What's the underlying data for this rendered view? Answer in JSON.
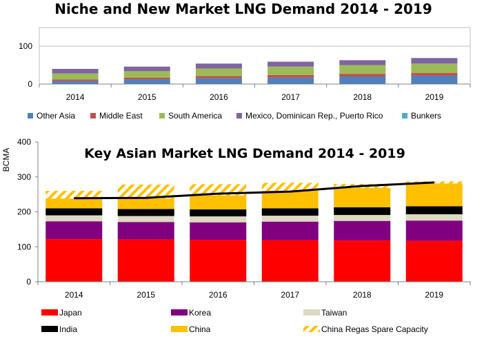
{
  "chart_data": [
    {
      "type": "bar",
      "stacked": true,
      "title": "Niche and New Market LNG Demand 2014 - 2019",
      "categories": [
        "2014",
        "2015",
        "2016",
        "2017",
        "2018",
        "2019"
      ],
      "ylim": [
        0,
        100
      ],
      "yticks": [
        0,
        100
      ],
      "gridlines": true,
      "legend_position": "bottom",
      "series": [
        {
          "name": "Other Asia",
          "color": "#4F81BD",
          "values": [
            8,
            12,
            15,
            17,
            20,
            22
          ]
        },
        {
          "name": "Middle East",
          "color": "#C0504D",
          "values": [
            4,
            5,
            6,
            7,
            7,
            7
          ]
        },
        {
          "name": "South America",
          "color": "#9BBB59",
          "values": [
            16,
            17,
            20,
            22,
            23,
            25
          ]
        },
        {
          "name": "Mexico, Dominican Rep., Puerto Rico",
          "color": "#8064A2",
          "values": [
            12,
            12,
            13,
            13,
            13,
            14
          ]
        },
        {
          "name": "Bunkers",
          "color": "#4BACC6",
          "values": [
            0,
            0,
            0,
            0,
            0,
            1
          ]
        }
      ]
    },
    {
      "type": "bar",
      "stacked": true,
      "title": "Key Asian Market LNG Demand 2014 - 2019",
      "ylabel": "BCMA",
      "categories": [
        "2014",
        "2015",
        "2016",
        "2017",
        "2018",
        "2019"
      ],
      "ylim": [
        0,
        400
      ],
      "yticks": [
        0,
        100,
        200,
        300,
        400
      ],
      "gridlines": false,
      "legend_position": "bottom",
      "series": [
        {
          "name": "Japan",
          "color": "#FF0000",
          "values": [
            122,
            121,
            120,
            119,
            118,
            117
          ]
        },
        {
          "name": "Korea",
          "color": "#800080",
          "values": [
            51,
            50,
            50,
            53,
            56,
            58
          ]
        },
        {
          "name": "Taiwan",
          "color": "#DDD9C3",
          "values": [
            17,
            17,
            17,
            17,
            17,
            18
          ]
        },
        {
          "name": "India",
          "color": "#000000",
          "values": [
            20,
            20,
            20,
            21,
            22,
            23
          ]
        },
        {
          "name": "China",
          "color": "#FFC000",
          "values": [
            28,
            30,
            40,
            50,
            55,
            65
          ]
        },
        {
          "name": "China Regas Spare Capacity",
          "color": "#FFC000",
          "pattern": "hatch",
          "values": [
            22,
            40,
            32,
            23,
            12,
            6
          ]
        }
      ],
      "line": {
        "name": "",
        "color": "#000000",
        "values": [
          239,
          240,
          252,
          258,
          274,
          284
        ]
      }
    }
  ]
}
